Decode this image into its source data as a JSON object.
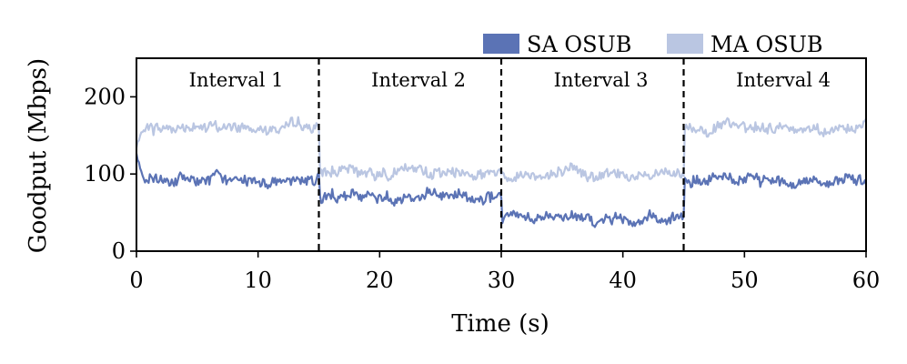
{
  "chart_data": {
    "type": "line",
    "title": "",
    "xlabel": "Time (s)",
    "ylabel": "Goodput (Mbps)",
    "xlim": [
      0,
      60
    ],
    "ylim": [
      0,
      250
    ],
    "xticks": [
      0,
      10,
      20,
      30,
      40,
      50,
      60
    ],
    "yticks": [
      0,
      100,
      200
    ],
    "legend_position": "top-right, above plot",
    "grid": false,
    "interval_boundaries": [
      15,
      30,
      45
    ],
    "annotations": [
      {
        "text": "Interval 1",
        "x": 8.2
      },
      {
        "text": "Interval 2",
        "x": 23.2
      },
      {
        "text": "Interval 3",
        "x": 38.2
      },
      {
        "text": "Interval 4",
        "x": 53.2
      }
    ],
    "series": [
      {
        "name": "SA OSUB",
        "color": "#5b73b5",
        "segments": [
          {
            "t0": 0,
            "t1": 15,
            "mean": 92,
            "start": 125
          },
          {
            "t0": 15,
            "t1": 30,
            "mean": 70
          },
          {
            "t0": 30,
            "t1": 45,
            "mean": 42
          },
          {
            "t0": 45,
            "t1": 60,
            "mean": 92
          }
        ]
      },
      {
        "name": "MA OSUB",
        "color": "#bac6e2",
        "segments": [
          {
            "t0": 0,
            "t1": 15,
            "mean": 160,
            "start": 135
          },
          {
            "t0": 15,
            "t1": 30,
            "mean": 103
          },
          {
            "t0": 30,
            "t1": 45,
            "mean": 100
          },
          {
            "t0": 45,
            "t1": 60,
            "mean": 160
          }
        ]
      }
    ]
  }
}
